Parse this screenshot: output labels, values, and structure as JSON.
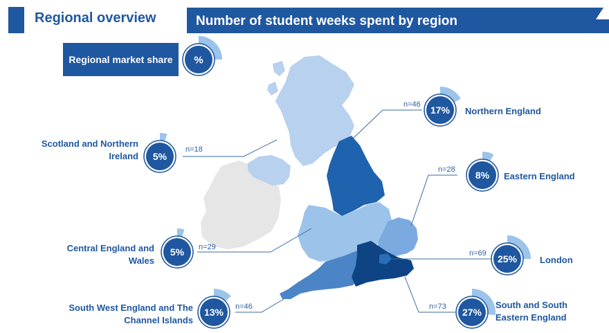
{
  "header": {
    "left_title": "Regional overview",
    "main_title": "Number of student weeks spent by region"
  },
  "legend": {
    "label": "Regional market share",
    "symbol": "%"
  },
  "colors": {
    "brand": "#1f57a0",
    "accent_light": "#9cc3ea",
    "ireland": "#e6e6e6"
  },
  "regions": [
    {
      "id": "scotland-ni",
      "name_lines": [
        "Scotland and Northern",
        "Ireland"
      ],
      "share": 5,
      "pct": "5%",
      "n": "n=18"
    },
    {
      "id": "northern",
      "name_lines": [
        "Northern England"
      ],
      "share": 17,
      "pct": "17%",
      "n": "n=46"
    },
    {
      "id": "eastern",
      "name_lines": [
        "Eastern England"
      ],
      "share": 8,
      "pct": "8%",
      "n": "n=28"
    },
    {
      "id": "central",
      "name_lines": [
        "Central England and",
        "Wales"
      ],
      "share": 5,
      "pct": "5%",
      "n": "n=29"
    },
    {
      "id": "london",
      "name_lines": [
        "London"
      ],
      "share": 25,
      "pct": "25%",
      "n": "n=69"
    },
    {
      "id": "south-west",
      "name_lines": [
        "South West England and The",
        "Channel Islands"
      ],
      "share": 13,
      "pct": "13%",
      "n": "n=46"
    },
    {
      "id": "south-east",
      "name_lines": [
        "South and South",
        "Eastern England"
      ],
      "share": 27,
      "pct": "27%",
      "n": "n=73"
    }
  ]
}
